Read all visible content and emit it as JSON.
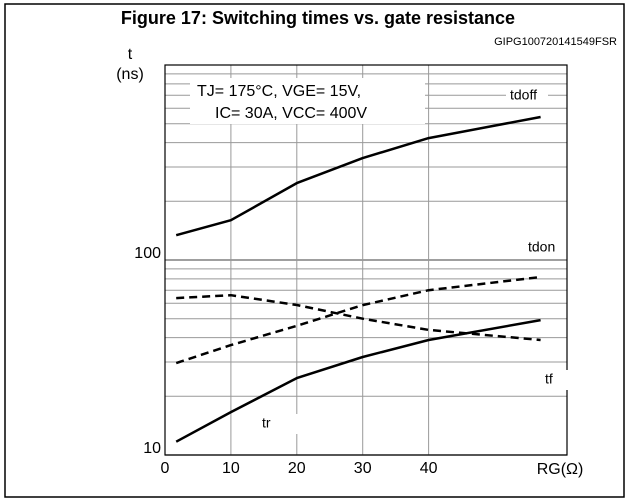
{
  "chart_data": {
    "type": "line",
    "title": "Figure 17: Switching times vs. gate resistance",
    "code": "GIPG100720141549FSR",
    "y_label": [
      "t",
      "(ns)"
    ],
    "x_label": "RG(Ω)",
    "conditions": [
      "TJ= 175°C, VGE= 15V,",
      "IC= 30A, VCC= 400V"
    ],
    "x": [
      1.7,
      10,
      20,
      30,
      40,
      57
    ],
    "series": [
      {
        "name": "tdoff",
        "color": "#000000",
        "dashed": false,
        "values": [
          134,
          160,
          248,
          333,
          422,
          541
        ]
      },
      {
        "name": "tdon",
        "color": "#000000",
        "dashed": true,
        "values": [
          29.6,
          36.6,
          46,
          58.7,
          70,
          81.8
        ]
      },
      {
        "name": "tf",
        "color": "#000000",
        "dashed": true,
        "values": [
          63.8,
          66,
          58.8,
          50,
          43.8,
          38.9
        ]
      },
      {
        "name": "tr",
        "color": "#000000",
        "dashed": false,
        "values": [
          11.7,
          16.6,
          24.8,
          31.8,
          38.9,
          49.2
        ]
      }
    ],
    "xlim": [
      0,
      61
    ],
    "xticks": [
      0,
      10,
      20,
      30,
      40
    ],
    "ylim": [
      10,
      1000
    ],
    "yticks": [
      10,
      100
    ],
    "y_minor_ticks": [
      20,
      30,
      40,
      50,
      60,
      70,
      80,
      90,
      200,
      300,
      400,
      500,
      600,
      700,
      800,
      900
    ],
    "log_y": true,
    "grid": true
  }
}
